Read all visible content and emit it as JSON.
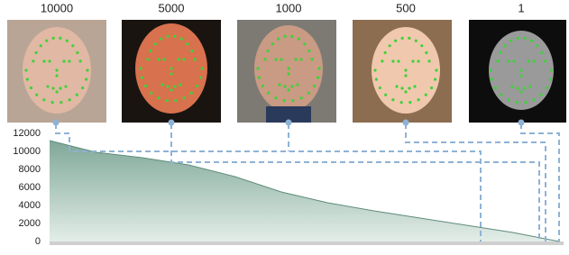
{
  "chart_data": {
    "type": "area",
    "annotations": [
      10000,
      5000,
      1000,
      500,
      1
    ],
    "categories": [
      null,
      null,
      null,
      null,
      null,
      null,
      null,
      null,
      null,
      null,
      null,
      null
    ],
    "values": [
      11200,
      9900,
      9300,
      8500,
      7200,
      5500,
      4300,
      3400,
      2600,
      1800,
      1000,
      0
    ],
    "color": "#9fc0b3",
    "ylim": [
      0,
      12000
    ],
    "yticks": [
      0,
      2000,
      4000,
      6000,
      8000,
      10000,
      12000
    ]
  }
}
